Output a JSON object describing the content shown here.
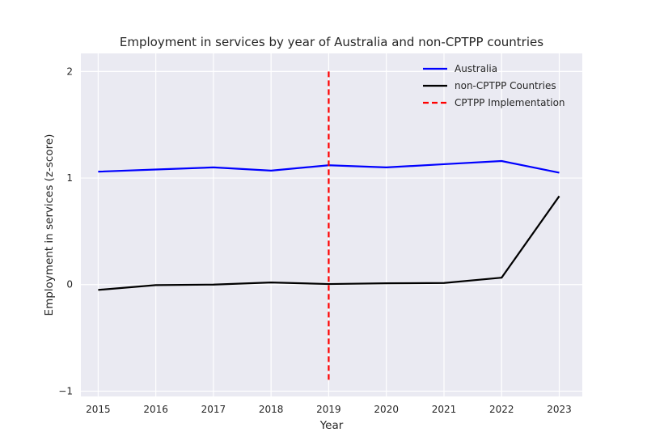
{
  "chart_data": {
    "type": "line",
    "title": "Employment in services by year of Australia and non-CPTPP countries",
    "xlabel": "Year",
    "ylabel": "Employment in services (z-score)",
    "x": [
      2015,
      2016,
      2017,
      2018,
      2019,
      2020,
      2021,
      2022,
      2023
    ],
    "xlim": [
      2014.7,
      2023.4
    ],
    "ylim": [
      -1.05,
      2.17
    ],
    "yticks": [
      -1,
      0,
      1,
      2
    ],
    "grid": true,
    "legend_position": "top-right",
    "series": [
      {
        "name": "Australia",
        "color": "#0000ff",
        "style": "solid",
        "values": [
          1.06,
          1.08,
          1.1,
          1.07,
          1.12,
          1.1,
          1.13,
          1.16,
          1.05
        ]
      },
      {
        "name": "non-CPTPP Countries",
        "color": "#000000",
        "style": "solid",
        "values": [
          -0.05,
          -0.005,
          0.0,
          0.02,
          0.005,
          0.012,
          0.015,
          0.065,
          0.83
        ]
      }
    ],
    "vline": {
      "name": "CPTPP Implementation",
      "x": 2019,
      "y_range": [
        -0.9,
        2.0
      ],
      "color": "#ff0000",
      "style": "dashed"
    }
  }
}
